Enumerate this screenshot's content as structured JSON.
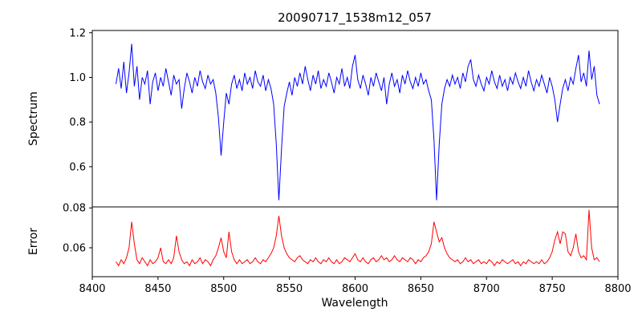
{
  "chart_data": [
    {
      "type": "line",
      "title": "20090717_1538m12_057",
      "ylabel": "Spectrum",
      "xlim": [
        8400,
        8800
      ],
      "ylim": [
        0.42,
        1.21
      ],
      "yticks": [
        "0.6",
        "0.8",
        "1.0",
        "1.2"
      ],
      "grid": false,
      "legend": "none",
      "series": [
        {
          "name": "spectrum",
          "color": "#0000ff",
          "x_start": 8418,
          "x_step": 2,
          "values": [
            0.97,
            1.04,
            0.95,
            1.07,
            0.93,
            1.02,
            1.15,
            0.96,
            1.05,
            0.9,
            1.0,
            0.97,
            1.03,
            0.88,
            0.98,
            1.02,
            0.94,
            1.0,
            0.96,
            1.04,
            0.98,
            0.92,
            1.01,
            0.97,
            0.99,
            0.86,
            0.95,
            1.02,
            0.98,
            0.93,
            1.0,
            0.96,
            1.03,
            0.98,
            0.95,
            1.01,
            0.97,
            0.99,
            0.93,
            0.82,
            0.65,
            0.8,
            0.93,
            0.88,
            0.97,
            1.01,
            0.95,
            0.99,
            0.94,
            1.02,
            0.97,
            1.0,
            0.95,
            1.03,
            0.98,
            0.96,
            1.01,
            0.94,
            0.99,
            0.95,
            0.88,
            0.7,
            0.45,
            0.68,
            0.87,
            0.93,
            0.98,
            0.92,
            1.0,
            0.96,
            1.02,
            0.97,
            1.05,
            0.99,
            0.94,
            1.01,
            0.97,
            1.03,
            0.95,
            0.99,
            0.96,
            1.02,
            0.98,
            0.93,
            1.0,
            0.97,
            1.04,
            0.96,
            1.0,
            0.95,
            1.05,
            1.1,
            0.99,
            0.95,
            1.01,
            0.97,
            0.92,
            1.0,
            0.96,
            1.02,
            0.98,
            0.94,
            1.0,
            0.88,
            0.97,
            1.02,
            0.96,
            0.99,
            0.93,
            1.01,
            0.97,
            1.03,
            0.98,
            0.95,
            1.0,
            0.96,
            1.02,
            0.97,
            0.99,
            0.94,
            0.9,
            0.72,
            0.45,
            0.7,
            0.88,
            0.95,
            0.99,
            0.96,
            1.01,
            0.97,
            1.0,
            0.95,
            1.02,
            0.98,
            1.05,
            1.08,
            0.99,
            0.96,
            1.01,
            0.97,
            0.94,
            1.0,
            0.97,
            1.03,
            0.98,
            0.95,
            1.01,
            0.96,
            0.99,
            0.94,
            1.0,
            0.97,
            1.02,
            0.98,
            0.95,
            1.0,
            0.96,
            1.03,
            0.98,
            0.94,
            0.99,
            0.96,
            1.01,
            0.97,
            0.93,
            1.0,
            0.96,
            0.9,
            0.8,
            0.88,
            0.95,
            0.99,
            0.94,
            1.0,
            0.97,
            1.04,
            1.1,
            0.98,
            1.02,
            0.96,
            1.12,
            0.99,
            1.05,
            0.92,
            0.88
          ]
        }
      ]
    },
    {
      "type": "line",
      "ylabel": "Error",
      "xlabel": "Wavelength",
      "xlim": [
        8400,
        8800
      ],
      "ylim": [
        0.0455,
        0.0805
      ],
      "yticks": [
        "0.06",
        "0.08"
      ],
      "xticks": [
        "8400",
        "8450",
        "8500",
        "8550",
        "8600",
        "8650",
        "8700",
        "8750",
        "8800"
      ],
      "grid": false,
      "legend": "none",
      "series": [
        {
          "name": "error",
          "color": "#ff0000",
          "x_start": 8418,
          "x_step": 2,
          "values": [
            0.053,
            0.051,
            0.054,
            0.052,
            0.055,
            0.06,
            0.073,
            0.062,
            0.054,
            0.052,
            0.055,
            0.053,
            0.051,
            0.054,
            0.052,
            0.053,
            0.055,
            0.06,
            0.053,
            0.052,
            0.054,
            0.052,
            0.055,
            0.066,
            0.058,
            0.054,
            0.052,
            0.053,
            0.051,
            0.054,
            0.052,
            0.053,
            0.055,
            0.052,
            0.054,
            0.053,
            0.051,
            0.054,
            0.056,
            0.06,
            0.065,
            0.058,
            0.055,
            0.068,
            0.058,
            0.054,
            0.052,
            0.054,
            0.052,
            0.053,
            0.054,
            0.052,
            0.053,
            0.055,
            0.053,
            0.052,
            0.054,
            0.053,
            0.055,
            0.057,
            0.06,
            0.066,
            0.076,
            0.066,
            0.06,
            0.057,
            0.055,
            0.054,
            0.053,
            0.055,
            0.056,
            0.054,
            0.053,
            0.052,
            0.054,
            0.053,
            0.055,
            0.053,
            0.052,
            0.054,
            0.053,
            0.055,
            0.053,
            0.052,
            0.054,
            0.052,
            0.053,
            0.055,
            0.054,
            0.053,
            0.055,
            0.057,
            0.054,
            0.053,
            0.055,
            0.053,
            0.052,
            0.054,
            0.055,
            0.053,
            0.054,
            0.056,
            0.054,
            0.055,
            0.053,
            0.054,
            0.056,
            0.054,
            0.053,
            0.055,
            0.054,
            0.053,
            0.055,
            0.054,
            0.052,
            0.054,
            0.053,
            0.055,
            0.056,
            0.058,
            0.062,
            0.073,
            0.068,
            0.063,
            0.065,
            0.06,
            0.057,
            0.055,
            0.054,
            0.053,
            0.054,
            0.052,
            0.053,
            0.055,
            0.053,
            0.054,
            0.052,
            0.053,
            0.054,
            0.052,
            0.053,
            0.052,
            0.054,
            0.053,
            0.051,
            0.053,
            0.052,
            0.054,
            0.053,
            0.052,
            0.053,
            0.054,
            0.052,
            0.053,
            0.051,
            0.053,
            0.052,
            0.054,
            0.053,
            0.052,
            0.053,
            0.052,
            0.054,
            0.052,
            0.053,
            0.055,
            0.058,
            0.064,
            0.068,
            0.062,
            0.068,
            0.067,
            0.058,
            0.056,
            0.06,
            0.067,
            0.058,
            0.055,
            0.056,
            0.054,
            0.079,
            0.06,
            0.054,
            0.055,
            0.053
          ]
        }
      ]
    }
  ],
  "axis_color": "#000000"
}
